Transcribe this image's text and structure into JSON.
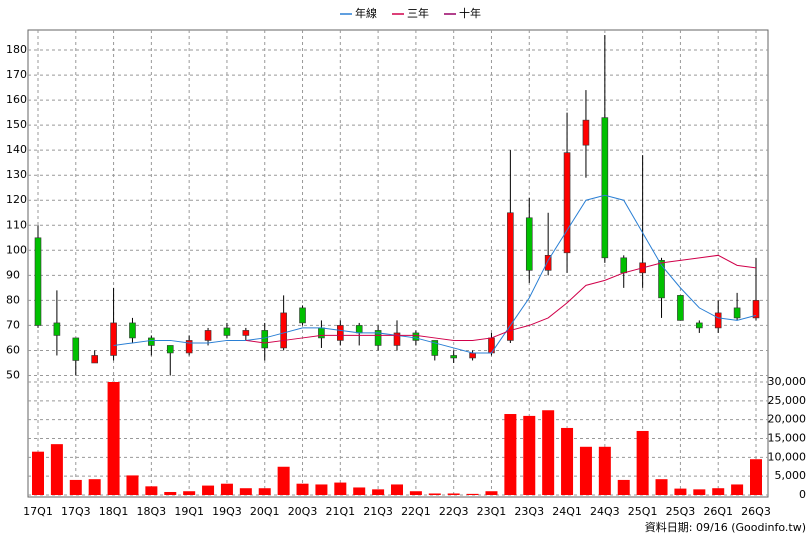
{
  "chart_data": [
    {
      "type": "candlestick",
      "categories": [
        "17Q1",
        null,
        "17Q3",
        null,
        "18Q1",
        null,
        "18Q3",
        null,
        "19Q1",
        null,
        "19Q3",
        null,
        "20Q1",
        null,
        "20Q3",
        null,
        "21Q1",
        null,
        "21Q3",
        null,
        "22Q1",
        null,
        "22Q3",
        null,
        "23Q1",
        null,
        "23Q3",
        null,
        "24Q1",
        null,
        "24Q3",
        null,
        "25Q1",
        null,
        "25Q3",
        null,
        "26Q1",
        null,
        "26Q3"
      ],
      "open": [
        105,
        71,
        65,
        55,
        58,
        71,
        65,
        62,
        59,
        64,
        69,
        66,
        68,
        61,
        77,
        69,
        64,
        70,
        68,
        62,
        67,
        64,
        58,
        57,
        59,
        64,
        113,
        92,
        99,
        142,
        153,
        97,
        91,
        96,
        82,
        71,
        69,
        77,
        73
      ],
      "high": [
        110,
        84,
        65,
        60,
        85,
        73,
        66,
        62,
        66,
        69,
        71,
        69,
        71,
        82,
        78,
        72,
        72,
        71,
        70,
        72,
        68,
        64,
        60,
        60,
        67,
        140,
        121,
        115,
        155,
        164,
        186,
        98,
        138,
        97,
        82,
        72,
        80,
        83,
        97
      ],
      "low": [
        69,
        58,
        50,
        55,
        56,
        63,
        58,
        50,
        58,
        62,
        65,
        64,
        56,
        60,
        70,
        61,
        62,
        62,
        60,
        60,
        62,
        56,
        55,
        56,
        58,
        63,
        87,
        90,
        91,
        129,
        95,
        85,
        85,
        73,
        72,
        67,
        67,
        72,
        72
      ],
      "close": [
        70,
        66,
        56,
        58,
        71,
        65,
        62,
        59,
        64,
        68,
        66,
        68,
        61,
        75,
        71,
        65,
        70,
        67,
        62,
        67,
        64,
        58,
        57,
        59,
        65,
        115,
        92,
        98,
        139,
        152,
        97,
        91,
        95,
        81,
        72,
        69,
        75,
        73,
        80
      ],
      "up_color": "#ff0000",
      "down_color": "#00c000",
      "series": [
        {
          "name": "年線",
          "color": "#2a7fd4",
          "values": [
            null,
            null,
            null,
            null,
            62,
            63,
            64,
            64,
            63,
            63,
            64,
            64,
            65,
            67,
            69,
            69,
            68,
            67,
            67,
            66,
            65,
            63,
            61,
            59,
            59,
            70,
            81,
            96,
            108,
            120,
            122,
            120,
            107,
            94,
            85,
            77,
            73,
            72,
            74
          ]
        },
        {
          "name": "三年",
          "color": "#d0004a",
          "values": [
            null,
            null,
            null,
            null,
            null,
            null,
            null,
            null,
            null,
            null,
            null,
            64,
            63,
            64,
            65,
            66,
            66,
            66,
            66,
            66,
            66,
            65,
            64,
            64,
            65,
            68,
            70,
            73,
            79,
            86,
            88,
            91,
            93,
            95,
            96,
            97,
            98,
            94,
            93
          ]
        },
        {
          "name": "十年",
          "color": "#990066",
          "values": [
            null,
            null,
            null,
            null,
            null,
            null,
            null,
            null,
            null,
            null,
            null,
            null,
            null,
            null,
            null,
            null,
            null,
            null,
            null,
            null,
            null,
            null,
            null,
            null,
            null,
            null,
            null,
            null,
            null,
            null,
            null,
            null,
            null,
            null,
            null,
            null,
            null,
            null,
            null
          ]
        }
      ],
      "ylim": [
        47,
        188
      ],
      "yticks": [
        50,
        60,
        70,
        80,
        90,
        100,
        110,
        120,
        130,
        140,
        150,
        160,
        170,
        180
      ],
      "grid": true
    },
    {
      "type": "bar",
      "color": "#ff0000",
      "values": [
        11500,
        13500,
        4000,
        4200,
        30000,
        5200,
        2300,
        800,
        1000,
        2500,
        3000,
        1800,
        1800,
        7500,
        3000,
        2800,
        3300,
        2000,
        1500,
        2800,
        1000,
        400,
        400,
        300,
        1000,
        21500,
        21000,
        22500,
        17800,
        12800,
        12800,
        4000,
        17000,
        4200,
        1700,
        1500,
        1800,
        2800,
        9500
      ],
      "ylim": [
        0,
        30000
      ],
      "yticks": [
        0,
        {
          "value": 5000,
          "label": "5,000"
        },
        {
          "value": 10000,
          "label": "10,000"
        },
        {
          "value": 15000,
          "label": "15,000"
        },
        {
          "value": 20000,
          "label": "20,000"
        },
        {
          "value": 25000,
          "label": "25,000"
        },
        {
          "value": 30000,
          "label": "30,000"
        }
      ],
      "grid": true,
      "source": "資料日期: 09/16 (Goodinfo.tw)"
    }
  ]
}
